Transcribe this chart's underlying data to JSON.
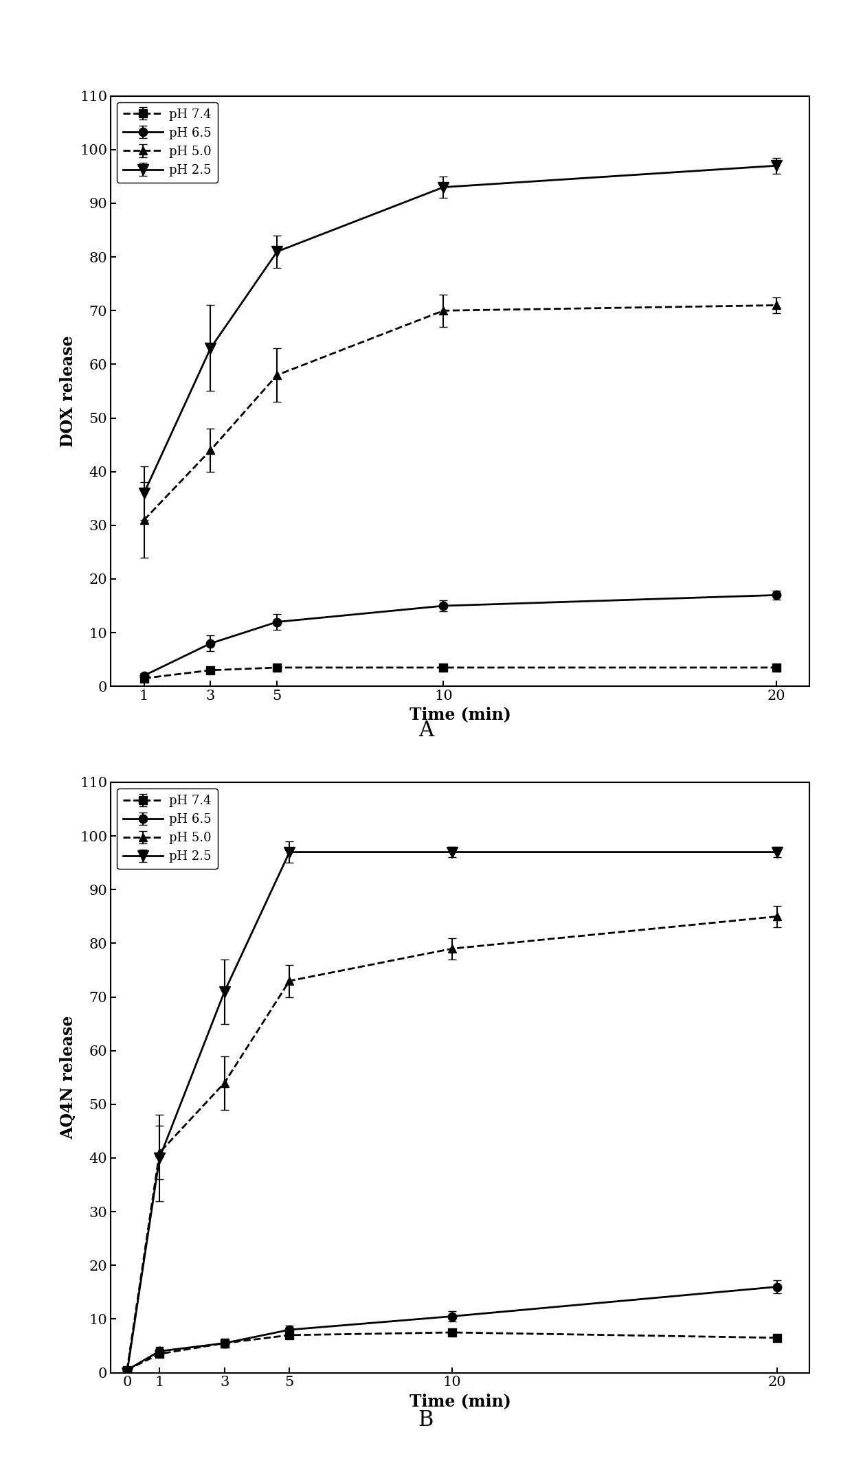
{
  "panel_A": {
    "title": "A",
    "xlabel": "Time (min)",
    "ylabel": "DOX release",
    "ylim": [
      0,
      110
    ],
    "yticks": [
      0,
      10,
      20,
      30,
      40,
      50,
      60,
      70,
      80,
      90,
      100,
      110
    ],
    "xtick_labels": [
      "1",
      "3",
      "5",
      "10",
      "20"
    ],
    "xtick_pos": [
      1,
      3,
      5,
      10,
      20
    ],
    "xlim": [
      0,
      21
    ],
    "series": [
      {
        "label": "pH 7.4",
        "x": [
          1,
          3,
          5,
          10,
          20
        ],
        "y": [
          1.5,
          3.0,
          3.5,
          3.5,
          3.5
        ],
        "yerr": [
          0.4,
          0.4,
          0.3,
          0.3,
          0.3
        ],
        "marker": "s",
        "linestyle": "--",
        "markersize": 9
      },
      {
        "label": "pH 6.5",
        "x": [
          1,
          3,
          5,
          10,
          20
        ],
        "y": [
          2.0,
          8.0,
          12.0,
          15.0,
          17.0
        ],
        "yerr": [
          0.5,
          1.5,
          1.5,
          1.0,
          0.8
        ],
        "marker": "o",
        "linestyle": "-",
        "markersize": 9
      },
      {
        "label": "pH 5.0",
        "x": [
          1,
          3,
          5,
          10,
          20
        ],
        "y": [
          31.0,
          44.0,
          58.0,
          70.0,
          71.0
        ],
        "yerr": [
          7.0,
          4.0,
          5.0,
          3.0,
          1.5
        ],
        "marker": "^",
        "linestyle": "--",
        "markersize": 9
      },
      {
        "label": "pH 2.5",
        "x": [
          1,
          3,
          5,
          10,
          20
        ],
        "y": [
          36.0,
          63.0,
          81.0,
          93.0,
          97.0
        ],
        "yerr": [
          5.0,
          8.0,
          3.0,
          2.0,
          1.5
        ],
        "marker": "v",
        "linestyle": "-",
        "markersize": 11
      }
    ]
  },
  "panel_B": {
    "title": "B",
    "xlabel": "Time (min)",
    "ylabel": "AQ4N release",
    "ylim": [
      0,
      110
    ],
    "yticks": [
      0,
      10,
      20,
      30,
      40,
      50,
      60,
      70,
      80,
      90,
      100,
      110
    ],
    "xtick_labels": [
      "0",
      "1",
      "3",
      "5",
      "10",
      "20"
    ],
    "xtick_pos": [
      0,
      1,
      3,
      5,
      10,
      20
    ],
    "xlim": [
      -0.5,
      21
    ],
    "series": [
      {
        "label": "pH 7.4",
        "x": [
          0,
          1,
          3,
          5,
          10,
          20
        ],
        "y": [
          0.5,
          3.5,
          5.5,
          7.0,
          7.5,
          6.5
        ],
        "yerr": [
          0.3,
          0.5,
          0.5,
          0.5,
          0.5,
          0.5
        ],
        "marker": "s",
        "linestyle": "--",
        "markersize": 9
      },
      {
        "label": "pH 6.5",
        "x": [
          0,
          1,
          3,
          5,
          10,
          20
        ],
        "y": [
          0.5,
          4.0,
          5.5,
          8.0,
          10.5,
          16.0
        ],
        "yerr": [
          0.3,
          0.8,
          0.8,
          0.8,
          1.0,
          1.2
        ],
        "marker": "o",
        "linestyle": "-",
        "markersize": 9
      },
      {
        "label": "pH 5.0",
        "x": [
          0,
          1,
          3,
          5,
          10,
          20
        ],
        "y": [
          0.5,
          41.0,
          54.0,
          73.0,
          79.0,
          85.0
        ],
        "yerr": [
          0.3,
          5.0,
          5.0,
          3.0,
          2.0,
          2.0
        ],
        "marker": "^",
        "linestyle": "--",
        "markersize": 9
      },
      {
        "label": "pH 2.5",
        "x": [
          0,
          1,
          3,
          5,
          10,
          20
        ],
        "y": [
          0.0,
          40.0,
          71.0,
          97.0,
          97.0,
          97.0
        ],
        "yerr": [
          0.3,
          8.0,
          6.0,
          2.0,
          1.0,
          1.0
        ],
        "marker": "v",
        "linestyle": "-",
        "markersize": 11
      }
    ]
  },
  "figure": {
    "bg_color": "#ffffff",
    "font_family": "DejaVu Serif",
    "tick_fontsize": 15,
    "label_fontsize": 17,
    "legend_fontsize": 13,
    "panel_label_fontsize": 22,
    "linewidth": 2.0,
    "capsize": 4,
    "elinewidth": 1.5,
    "color": "#000000"
  }
}
